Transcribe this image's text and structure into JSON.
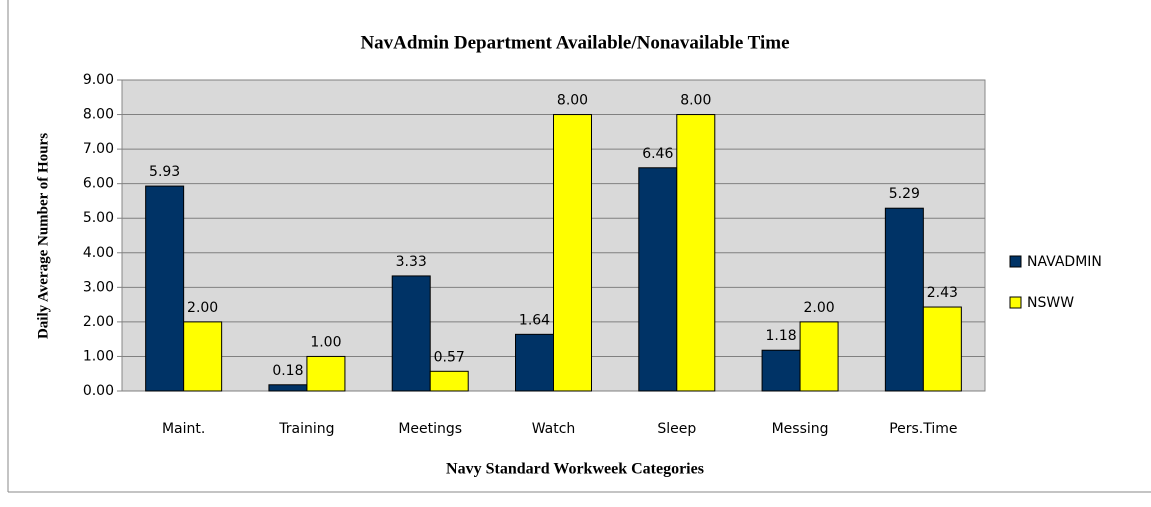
{
  "chart_data": {
    "type": "bar",
    "title": "NavAdmin Department Available/Nonavailable Time",
    "x_label": "Navy Standard Workweek Categories",
    "y_label": "Daily Average Number of Hours",
    "categories": [
      "Maint.",
      "Training",
      "Meetings",
      "Watch",
      "Sleep",
      "Messing",
      "Pers.Time"
    ],
    "series": [
      {
        "name": "NAVADMIN",
        "color": "#003366",
        "values": [
          5.93,
          0.18,
          3.33,
          1.64,
          6.46,
          1.18,
          5.29
        ],
        "value_labels": [
          "5.93",
          "0.18",
          "3.33",
          "1.64",
          "6.46",
          "1.18",
          "5.29"
        ]
      },
      {
        "name": "NSWW",
        "color": "#ffff00",
        "values": [
          2,
          1,
          0.57,
          8,
          8,
          2,
          2.43
        ],
        "value_labels": [
          "2.00",
          "1.00",
          "0.57",
          "8.00",
          "8.00",
          "2.00",
          "2.43"
        ]
      }
    ],
    "ylim": [
      0,
      9
    ],
    "yticks": [
      {
        "value": 0,
        "label": "0.00"
      },
      {
        "value": 1,
        "label": "1.00"
      },
      {
        "value": 2,
        "label": "2.00"
      },
      {
        "value": 3,
        "label": "3.00"
      },
      {
        "value": 4,
        "label": "4.00"
      },
      {
        "value": 5,
        "label": "5.00"
      },
      {
        "value": 6,
        "label": "6.00"
      },
      {
        "value": 7,
        "label": "7.00"
      },
      {
        "value": 8,
        "label": "8.00"
      },
      {
        "value": 9,
        "label": "9.00"
      }
    ],
    "grid": true,
    "legend": "right",
    "plot_background": "#d9d9d9"
  }
}
